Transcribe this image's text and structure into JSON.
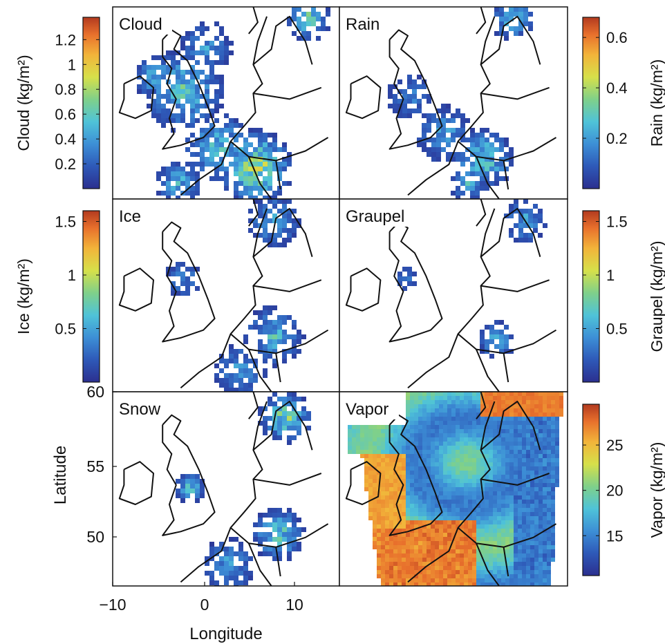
{
  "chart_data": {
    "type": "heatmap",
    "xlabel": "Longitude",
    "ylabel": "Latitude",
    "x_ticks": [
      "−10",
      "0",
      "10"
    ],
    "y_ticks": [
      "60",
      "55",
      "50"
    ],
    "panels": [
      {
        "label": "Cloud",
        "colorbar_label": "Cloud (kg/m²)",
        "colorbar_ticks": [
          "1.2",
          "1",
          "0.8",
          "0.6",
          "0.4",
          "0.2"
        ],
        "colorbar_side": "left"
      },
      {
        "label": "Rain",
        "colorbar_label": "Rain (kg/m²)",
        "colorbar_ticks": [
          "0.6",
          "0.4",
          "0.2"
        ],
        "colorbar_side": "right"
      },
      {
        "label": "Ice",
        "colorbar_label": "Ice (kg/m²)",
        "colorbar_ticks": [
          "1.5",
          "1",
          "0.5"
        ],
        "colorbar_side": "left"
      },
      {
        "label": "Graupel",
        "colorbar_label": "Graupel (kg/m²)",
        "colorbar_ticks": [
          "1.5",
          "1",
          "0.5"
        ],
        "colorbar_side": "right"
      },
      {
        "label": "Snow",
        "colorbar_label": "",
        "colorbar_ticks": [],
        "colorbar_side": "none"
      },
      {
        "label": "Vapor",
        "colorbar_label": "Vapor (kg/m²)",
        "colorbar_ticks": [
          "25",
          "20",
          "15"
        ],
        "colorbar_side": "right"
      }
    ],
    "colormap": [
      "#2b2f8f",
      "#2e59b8",
      "#3d8fd6",
      "#4fc3d8",
      "#7fd08a",
      "#d6e04a",
      "#f2b43a",
      "#e8702c",
      "#b23a1f"
    ]
  }
}
